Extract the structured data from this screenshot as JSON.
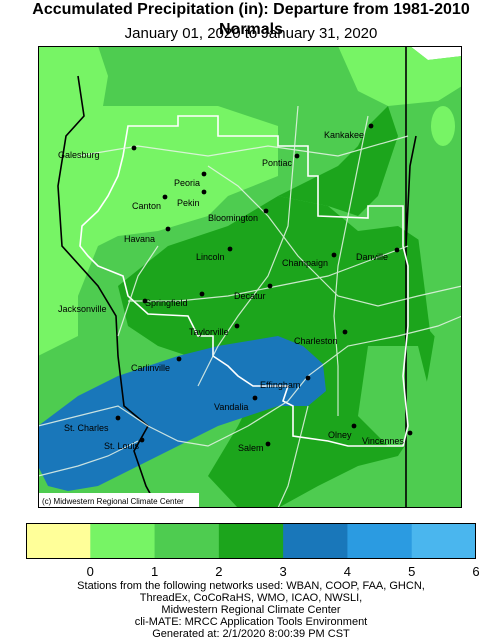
{
  "title": "Accumulated Precipitation (in): Departure from 1981-2010 Normals",
  "subtitle": "January 01, 2020 to January 31, 2020",
  "credit": "(c) Midwestern Regional Climate Center",
  "cities": [
    {
      "name": "Galesburg"
    },
    {
      "name": "Kankakee"
    },
    {
      "name": "Peoria"
    },
    {
      "name": "Pontiac"
    },
    {
      "name": "Canton"
    },
    {
      "name": "Pekin"
    },
    {
      "name": "Bloomington"
    },
    {
      "name": "Havana"
    },
    {
      "name": "Lincoln"
    },
    {
      "name": "Champaign"
    },
    {
      "name": "Danville"
    },
    {
      "name": "Jacksonville"
    },
    {
      "name": "Springfield"
    },
    {
      "name": "Decatur"
    },
    {
      "name": "Taylorville"
    },
    {
      "name": "Charleston"
    },
    {
      "name": "Carlinville"
    },
    {
      "name": "Effingham"
    },
    {
      "name": "Vandalia"
    },
    {
      "name": "St. Charles"
    },
    {
      "name": "St. Louis"
    },
    {
      "name": "Olney"
    },
    {
      "name": "Vincennes"
    },
    {
      "name": "Salem"
    }
  ],
  "legend": {
    "colors": [
      "#ffff99",
      "#77f465",
      "#4ecc50",
      "#1ca51c",
      "#1977ba",
      "#2b9be1",
      "#4ab6ee"
    ],
    "ticks": [
      "0",
      "1",
      "2",
      "3",
      "4",
      "5",
      "6"
    ]
  },
  "footer": [
    "Stations from the following networks used: WBAN, COOP, FAA, GHCN,",
    "ThreadEx, CoCoRaHS, WMO, ICAO, NWSLI,",
    "Midwestern Regional Climate Center",
    "cli-MATE: MRCC Application Tools Environment",
    "Generated at: 2/1/2020 8:00:39 PM CST"
  ]
}
